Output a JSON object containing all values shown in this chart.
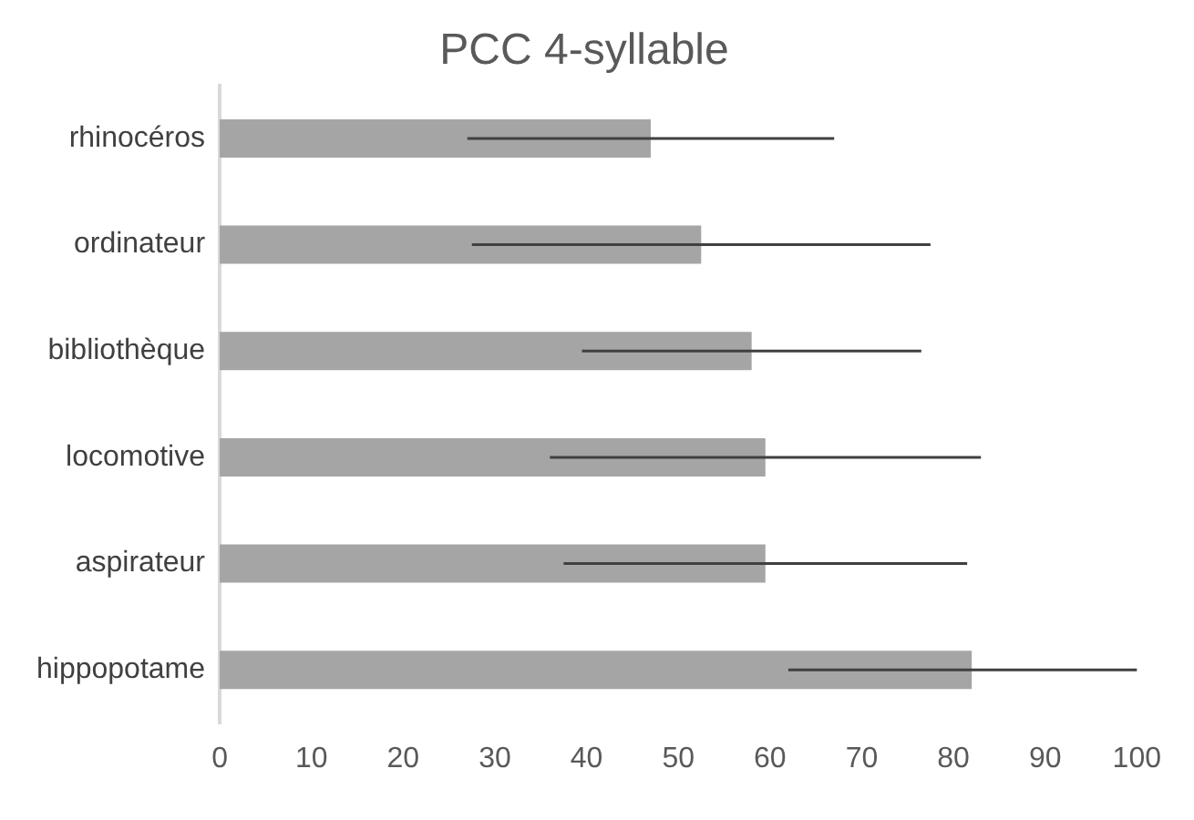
{
  "chart_data": {
    "type": "bar",
    "orientation": "horizontal",
    "title": "PCC 4-syllable",
    "categories": [
      "rhinocéros",
      "ordinateur",
      "bibliothèque",
      "locomotive",
      "aspirateur",
      "hippopotame"
    ],
    "values": [
      47,
      52.5,
      58,
      59.5,
      59.5,
      82
    ],
    "errors": [
      20,
      25,
      18.5,
      23.5,
      22,
      [
        62,
        100
      ]
    ],
    "color": "#a5a5a5",
    "xlim": [
      0,
      100
    ],
    "xticks": [
      0,
      10,
      20,
      30,
      40,
      50,
      60,
      70,
      80,
      90,
      100
    ],
    "grid": false,
    "legend": false
  }
}
